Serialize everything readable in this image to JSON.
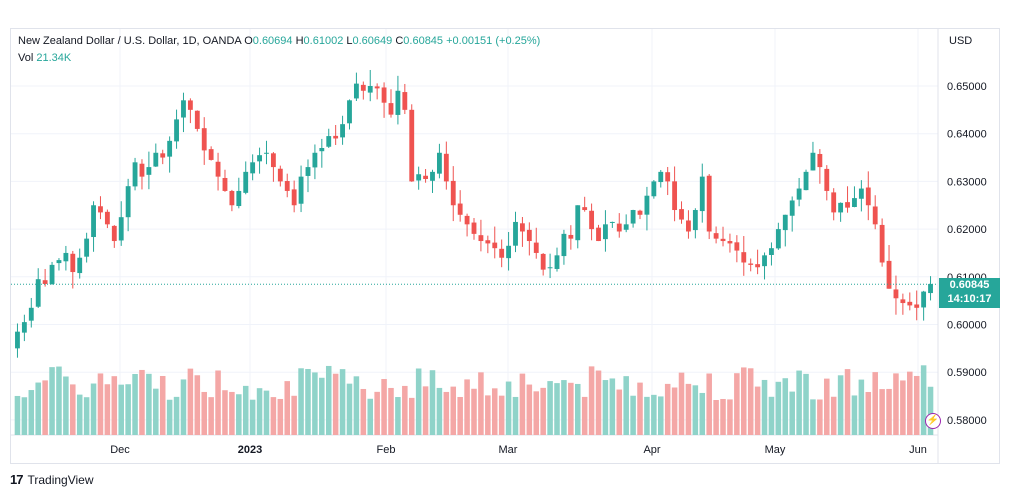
{
  "legend": {
    "symbol": "New Zealand Dollar / U.S. Dollar, 1D, OANDA",
    "o_label": "O",
    "o_value": "0.60694",
    "h_label": "H",
    "h_value": "0.61002",
    "l_label": "L",
    "l_value": "0.60649",
    "c_label": "C",
    "c_value": "0.60845",
    "change": "+0.00151 (+0.25%)",
    "vol_label": "Vol",
    "vol_value": "21.34K"
  },
  "price_badge": {
    "price": "0.60845",
    "countdown": "14:10:17"
  },
  "footer": {
    "brand": "TradingView",
    "logo_text": "17"
  },
  "colors": {
    "up": "#26a69a",
    "down": "#ef5350",
    "vol_up": "#8fd3c9",
    "vol_down": "#f4a7a6",
    "grid": "#f0f3fa"
  },
  "chart_data": {
    "type": "candlestick",
    "currency_label": "USD",
    "y_ticks": [
      "0.65000",
      "0.64000",
      "0.63000",
      "0.62000",
      "0.61000",
      "0.60000",
      "0.59000",
      "0.58000"
    ],
    "ylim": [
      0.577,
      0.656
    ],
    "x_ticks": [
      "Dec",
      "2023",
      "Feb",
      "Mar",
      "Apr",
      "May",
      "Jun"
    ],
    "last_price": 0.60845,
    "closes": [
      0.5985,
      0.6005,
      0.6035,
      0.6095,
      0.6085,
      0.6125,
      0.6135,
      0.615,
      0.611,
      0.614,
      0.618,
      0.625,
      0.6235,
      0.621,
      0.6175,
      0.6225,
      0.629,
      0.634,
      0.631,
      0.633,
      0.636,
      0.635,
      0.6385,
      0.643,
      0.647,
      0.645,
      0.641,
      0.6365,
      0.6345,
      0.631,
      0.628,
      0.625,
      0.628,
      0.632,
      0.634,
      0.6355,
      0.636,
      0.633,
      0.63,
      0.628,
      0.625,
      0.631,
      0.633,
      0.636,
      0.637,
      0.6395,
      0.639,
      0.642,
      0.647,
      0.6505,
      0.649,
      0.65,
      0.6495,
      0.6465,
      0.644,
      0.649,
      0.645,
      0.63,
      0.6315,
      0.6305,
      0.632,
      0.636,
      0.63,
      0.625,
      0.623,
      0.621,
      0.619,
      0.6175,
      0.617,
      0.616,
      0.614,
      0.6165,
      0.6215,
      0.6195,
      0.6175,
      0.615,
      0.6115,
      0.612,
      0.6145,
      0.619,
      0.618,
      0.625,
      0.624,
      0.62,
      0.6175,
      0.621,
      0.6215,
      0.6195,
      0.621,
      0.624,
      0.623,
      0.627,
      0.63,
      0.632,
      0.63,
      0.624,
      0.622,
      0.6195,
      0.624,
      0.631,
      0.6195,
      0.618,
      0.6175,
      0.617,
      0.6155,
      0.613,
      0.6125,
      0.612,
      0.6145,
      0.616,
      0.62,
      0.623,
      0.626,
      0.6285,
      0.632,
      0.636,
      0.633,
      0.628,
      0.6235,
      0.6255,
      0.6245,
      0.6265,
      0.6285,
      0.625,
      0.621,
      0.613,
      0.6075,
      0.6055,
      0.6045,
      0.604,
      0.6035,
      0.6069,
      0.6085
    ]
  }
}
